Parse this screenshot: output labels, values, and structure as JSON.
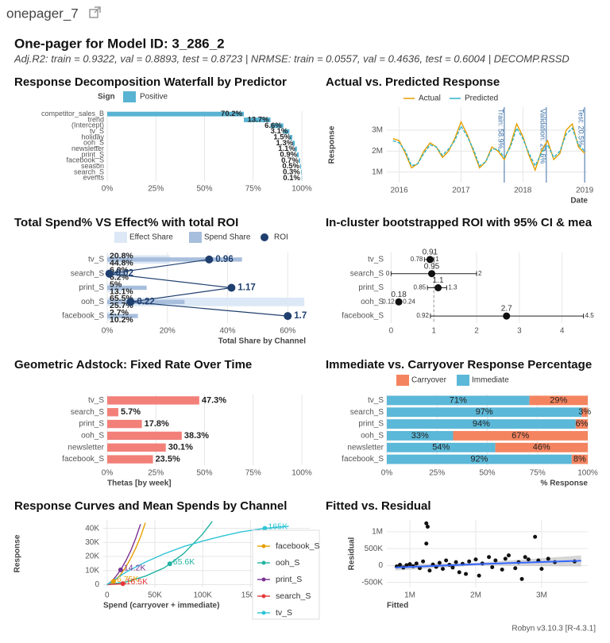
{
  "header": {
    "page_title": "onepager_7",
    "title": "One-pager for Model ID: 3_286_2",
    "subtitle": "Adj.R2: train = 0.9322, val = 0.8893, test = 0.8723 | NRMSE: train = 0.0557, val = 0.4636, test = 0.6004 | DECOMP.RSSD"
  },
  "footer": "Robyn v3.10.3 [R-4.3.1]",
  "chart_data": [
    {
      "type": "waterfall",
      "title": "Response Decomposition Waterfall by Predictor",
      "legend_title": "Sign",
      "legend": [
        "Positive"
      ],
      "color": "#59B3D2",
      "categories": [
        "competitor_sales_B",
        "trend",
        "(Intercept)",
        "tv_S",
        "holiday",
        "ooh_S",
        "newsletter",
        "print_S",
        "facebook_S",
        "season",
        "search_S",
        "events"
      ],
      "values": [
        70.2,
        13.7,
        6.6,
        3.1,
        1.5,
        1.3,
        1.1,
        0.9,
        0.7,
        0.5,
        0.3,
        0.1
      ],
      "value_labels": [
        "70.2%",
        "13.7%",
        "6.6%",
        "3.1%",
        "1.5%",
        "1.3%",
        "1.1%",
        "0.9%",
        "0.7%",
        "0.5%",
        "0.3%",
        "0.1%"
      ],
      "xlim": [
        0,
        100
      ],
      "xticks": [
        {
          "value": 0,
          "label": "0%"
        },
        {
          "value": 25,
          "label": "25%"
        },
        {
          "value": 50,
          "label": "50%"
        },
        {
          "value": 75,
          "label": "75%"
        },
        {
          "value": 100,
          "label": "100%"
        }
      ]
    },
    {
      "type": "line",
      "title": "Actual vs. Predicted Response",
      "xlabel": "Date",
      "ylabel": "Response",
      "x": [
        2015.9,
        2016.0,
        2016.1,
        2016.2,
        2016.3,
        2016.4,
        2016.5,
        2016.6,
        2016.7,
        2016.8,
        2016.9,
        2017.0,
        2017.1,
        2017.2,
        2017.3,
        2017.4,
        2017.5,
        2017.6,
        2017.7,
        2017.8,
        2017.9,
        2018.0,
        2018.1,
        2018.2,
        2018.3,
        2018.4,
        2018.5,
        2018.6,
        2018.7,
        2018.8,
        2018.9,
        2019.0
      ],
      "series": [
        {
          "name": "Actual",
          "color": "#E69F00",
          "values": [
            2600000,
            2500000,
            1900000,
            1200000,
            1400000,
            2000000,
            2400000,
            2200000,
            1700000,
            2000000,
            2600000,
            3400000,
            2800000,
            2000000,
            1200000,
            1500000,
            2200000,
            2000000,
            1600000,
            2300000,
            3300000,
            2700000,
            1800000,
            1100000,
            2000000,
            2500000,
            1600000,
            1900000,
            3000000,
            3300000,
            2200000,
            1900000
          ]
        },
        {
          "name": "Predicted",
          "color": "#2BB3C9",
          "values": [
            2500000,
            2400000,
            2000000,
            1300000,
            1400000,
            1900000,
            2300000,
            2200000,
            1800000,
            2100000,
            2500000,
            3200000,
            2700000,
            2100000,
            1300000,
            1500000,
            2100000,
            2100000,
            1700000,
            2200000,
            3100000,
            2600000,
            1900000,
            1300000,
            1900000,
            2300000,
            1700000,
            2000000,
            2800000,
            3100000,
            2300000,
            2000000
          ]
        }
      ],
      "splits": [
        {
          "x": 2017.7,
          "label": "Train: 58.9%"
        },
        {
          "x": 2018.38,
          "label": "Validation: 20.6%"
        },
        {
          "x": 2019.0,
          "label": "Test: 20.5%"
        }
      ],
      "xlim": [
        2015.8,
        2019.05
      ],
      "xticks": [
        2016,
        2017,
        2018,
        2019
      ],
      "ylim": [
        500000,
        4100000
      ],
      "yticks": [
        {
          "value": 1000000,
          "label": "1M"
        },
        {
          "value": 2000000,
          "label": "2M"
        },
        {
          "value": 3000000,
          "label": "3M"
        }
      ]
    },
    {
      "type": "bar_roi",
      "title": "Total Spend% VS Effect% with total ROI",
      "xlabel": "Total Share by Channel",
      "categories": [
        "tv_S",
        "search_S",
        "print_S",
        "ooh_S",
        "facebook_S"
      ],
      "series": [
        {
          "name": "Effect Share",
          "color": "#DCE8F5",
          "values": [
            20.8,
            6.0,
            5.0,
            65.5,
            2.7
          ],
          "value_labels": [
            "20.8%",
            "6.0%",
            "5%",
            "65.5%",
            "2.7%"
          ]
        },
        {
          "name": "Spend Share",
          "color": "#A7BEDC",
          "values": [
            44.8,
            6.2,
            13.1,
            25.7,
            10.2
          ],
          "value_labels": [
            "44.8%",
            "6.2%",
            "13.1%",
            "25.7%",
            "10.2%"
          ]
        },
        {
          "name": "ROI",
          "color": "#1F3F6E",
          "values": [
            0.96,
            0.02,
            1.17,
            0.22,
            1.7
          ],
          "value_labels": [
            "0.96",
            "0.02",
            "1.17",
            "0.22",
            "1.7"
          ]
        }
      ],
      "xlim": [
        0,
        66
      ],
      "x2lim": [
        0,
        1.87
      ],
      "xticks": [
        {
          "value": 0,
          "label": "0%"
        },
        {
          "value": 20,
          "label": "20%"
        },
        {
          "value": 40,
          "label": "40%"
        },
        {
          "value": 60,
          "label": "60%"
        }
      ]
    },
    {
      "type": "errorbar",
      "title": "In-cluster bootstrapped ROI with 95% CI & mea",
      "categories": [
        "tv_S",
        "search_S",
        "print_S",
        "ooh_S",
        "facebook_S"
      ],
      "values": [
        0.91,
        0.95,
        1.1,
        0.18,
        2.7
      ],
      "lower": [
        0.78,
        0,
        0.85,
        0.12,
        0.92
      ],
      "upper": [
        1,
        2,
        1.3,
        0.24,
        4.5
      ],
      "reference": 1,
      "xlim": [
        -0.1,
        4.6
      ],
      "xticks": [
        0,
        1,
        2,
        3,
        4
      ]
    },
    {
      "type": "bar",
      "title": "Geometric Adstock: Fixed Rate Over Time",
      "xlabel": "Thetas [by week]",
      "color": "#F28079",
      "categories": [
        "tv_S",
        "search_S",
        "print_S",
        "ooh_S",
        "newsletter",
        "facebook_S"
      ],
      "values": [
        47.3,
        5.7,
        17.8,
        38.3,
        30.1,
        23.5
      ],
      "value_labels": [
        "47.3%",
        "5.7%",
        "17.8%",
        "38.3%",
        "30.1%",
        "23.5%"
      ],
      "xlim": [
        0,
        100
      ],
      "xticks": [
        {
          "value": 0,
          "label": "0%"
        },
        {
          "value": 25,
          "label": "25%"
        },
        {
          "value": 50,
          "label": "50%"
        },
        {
          "value": 75,
          "label": "75%"
        },
        {
          "value": 100,
          "label": "100%"
        }
      ]
    },
    {
      "type": "stacked_bar",
      "title": "Immediate vs. Carryover Response Percentage",
      "xlabel": "% Response",
      "categories": [
        "tv_S",
        "search_S",
        "print_S",
        "ooh_S",
        "newsletter",
        "facebook_S"
      ],
      "series": [
        {
          "name": "Carryover",
          "color": "#F4845F",
          "values": [
            29,
            3,
            6,
            67,
            46,
            8
          ],
          "value_labels": [
            "29%",
            "3%",
            "6%",
            "67%",
            "46%",
            "8%"
          ]
        },
        {
          "name": "Immediate",
          "color": "#5BB8D8",
          "values": [
            71,
            97,
            94,
            33,
            54,
            92
          ],
          "value_labels": [
            "71%",
            "97%",
            "94%",
            "33%",
            "54%",
            "92%"
          ]
        }
      ],
      "xlim": [
        0,
        100
      ],
      "xticks": [
        {
          "value": 0,
          "label": "0%"
        },
        {
          "value": 25,
          "label": "25%"
        },
        {
          "value": 50,
          "label": "50%"
        },
        {
          "value": 75,
          "label": "75%"
        },
        {
          "value": 100,
          "label": "100%"
        }
      ]
    },
    {
      "type": "response_curves",
      "title": "Response Curves and Mean Spends by Channel",
      "xlabel": "Spend (carryover + immediate)",
      "ylabel": "Response",
      "series": [
        {
          "name": "facebook_S",
          "color": "#E69F00",
          "x": [
            0,
            5000,
            10000,
            15000,
            20000,
            25000,
            30000,
            35000,
            40000
          ],
          "values": [
            0,
            1500,
            4000,
            8000,
            13000,
            19000,
            26000,
            34000,
            44000
          ],
          "mean_spend": 6750,
          "mean_response": 2400,
          "mean_label": "6.75K"
        },
        {
          "name": "ooh_S",
          "color": "#21B3A2",
          "x": [
            0,
            20000,
            40000,
            60000,
            80000,
            100000,
            110000
          ],
          "values": [
            0,
            2000,
            6000,
            12000,
            22000,
            36000,
            45000
          ],
          "mean_spend": 65600,
          "mean_response": 14800,
          "mean_label": "65.6K"
        },
        {
          "name": "print_S",
          "color": "#7B3294",
          "x": [
            0,
            5000,
            10000,
            15000,
            20000,
            25000,
            30000,
            35000
          ],
          "values": [
            0,
            2500,
            6500,
            11500,
            17500,
            24500,
            33000,
            43000
          ],
          "mean_spend": 14200,
          "mean_response": 10500,
          "mean_label": "14.2K"
        },
        {
          "name": "search_S",
          "color": "#E5383B",
          "x": [
            0,
            5000,
            10000,
            15000,
            20000
          ],
          "values": [
            0,
            200,
            400,
            600,
            800
          ],
          "mean_spend": 16500,
          "mean_response": 660,
          "mean_label": "16.5K"
        },
        {
          "name": "tv_S",
          "color": "#2EC4D6",
          "x": [
            0,
            20000,
            40000,
            60000,
            80000,
            100000,
            120000,
            140000,
            165000,
            190000
          ],
          "values": [
            0,
            9000,
            16000,
            22000,
            27000,
            31000,
            34500,
            37500,
            40000,
            41500
          ],
          "mean_spend": 165000,
          "mean_response": 40000,
          "mean_label": "165K"
        }
      ],
      "xlim": [
        -4000,
        212000
      ],
      "xticks": [
        0,
        {
          "value": 50000,
          "label": "50K"
        },
        {
          "value": 100000,
          "label": "100K"
        },
        {
          "value": 150000,
          "label": "150K"
        }
      ],
      "ylim": [
        -2000,
        46000
      ],
      "yticks": [
        0,
        {
          "value": 10000,
          "label": "10K"
        },
        {
          "value": 20000,
          "label": "20K"
        },
        {
          "value": 30000,
          "label": "30K"
        },
        {
          "value": 40000,
          "label": "40K"
        }
      ]
    },
    {
      "type": "scatter",
      "title": "Fitted vs. Residual",
      "xlabel": "Fitted",
      "ylabel": "Residual",
      "x": [
        800000,
        850000,
        900000,
        950000,
        1000000,
        1050000,
        1100000,
        1150000,
        1200000,
        1250000,
        1270000,
        1250000,
        1300000,
        1350000,
        1400000,
        1450000,
        1500000,
        1550000,
        1600000,
        1650000,
        1700000,
        1750000,
        1800000,
        1850000,
        1900000,
        2000000,
        2050000,
        2100000,
        2200000,
        2250000,
        2300000,
        2400000,
        2450000,
        2500000,
        2600000,
        2650000,
        2700000,
        2750000,
        2800000,
        2900000,
        2950000,
        3000000,
        3100000,
        3200000,
        3500000
      ],
      "values": [
        -30000,
        20000,
        -60000,
        10000,
        40000,
        -20000,
        60000,
        -80000,
        120000,
        1250000,
        1150000,
        650000,
        -150000,
        30000,
        -40000,
        80000,
        -100000,
        150000,
        20000,
        -60000,
        100000,
        -200000,
        50000,
        -250000,
        120000,
        180000,
        -300000,
        60000,
        250000,
        -50000,
        150000,
        -120000,
        200000,
        300000,
        -80000,
        100000,
        -400000,
        250000,
        180000,
        850000,
        150000,
        -100000,
        200000,
        100000,
        120000
      ],
      "trend": {
        "x": [
          780000,
          2000000,
          3600000
        ],
        "values": [
          -60000,
          40000,
          140000
        ],
        "lower": [
          -150000,
          0,
          -30000
        ],
        "upper": [
          30000,
          80000,
          300000
        ]
      },
      "xlim": [
        650000,
        3700000
      ],
      "xticks": [
        {
          "value": 1000000,
          "label": "1M"
        },
        {
          "value": 2000000,
          "label": "2M"
        },
        {
          "value": 3000000,
          "label": "3M"
        }
      ],
      "ylim": [
        -650000,
        1350000
      ],
      "yticks": [
        {
          "value": -500000,
          "label": "-500K"
        },
        0,
        {
          "value": 500000,
          "label": "500K"
        },
        {
          "value": 1000000,
          "label": "1M"
        }
      ]
    }
  ]
}
